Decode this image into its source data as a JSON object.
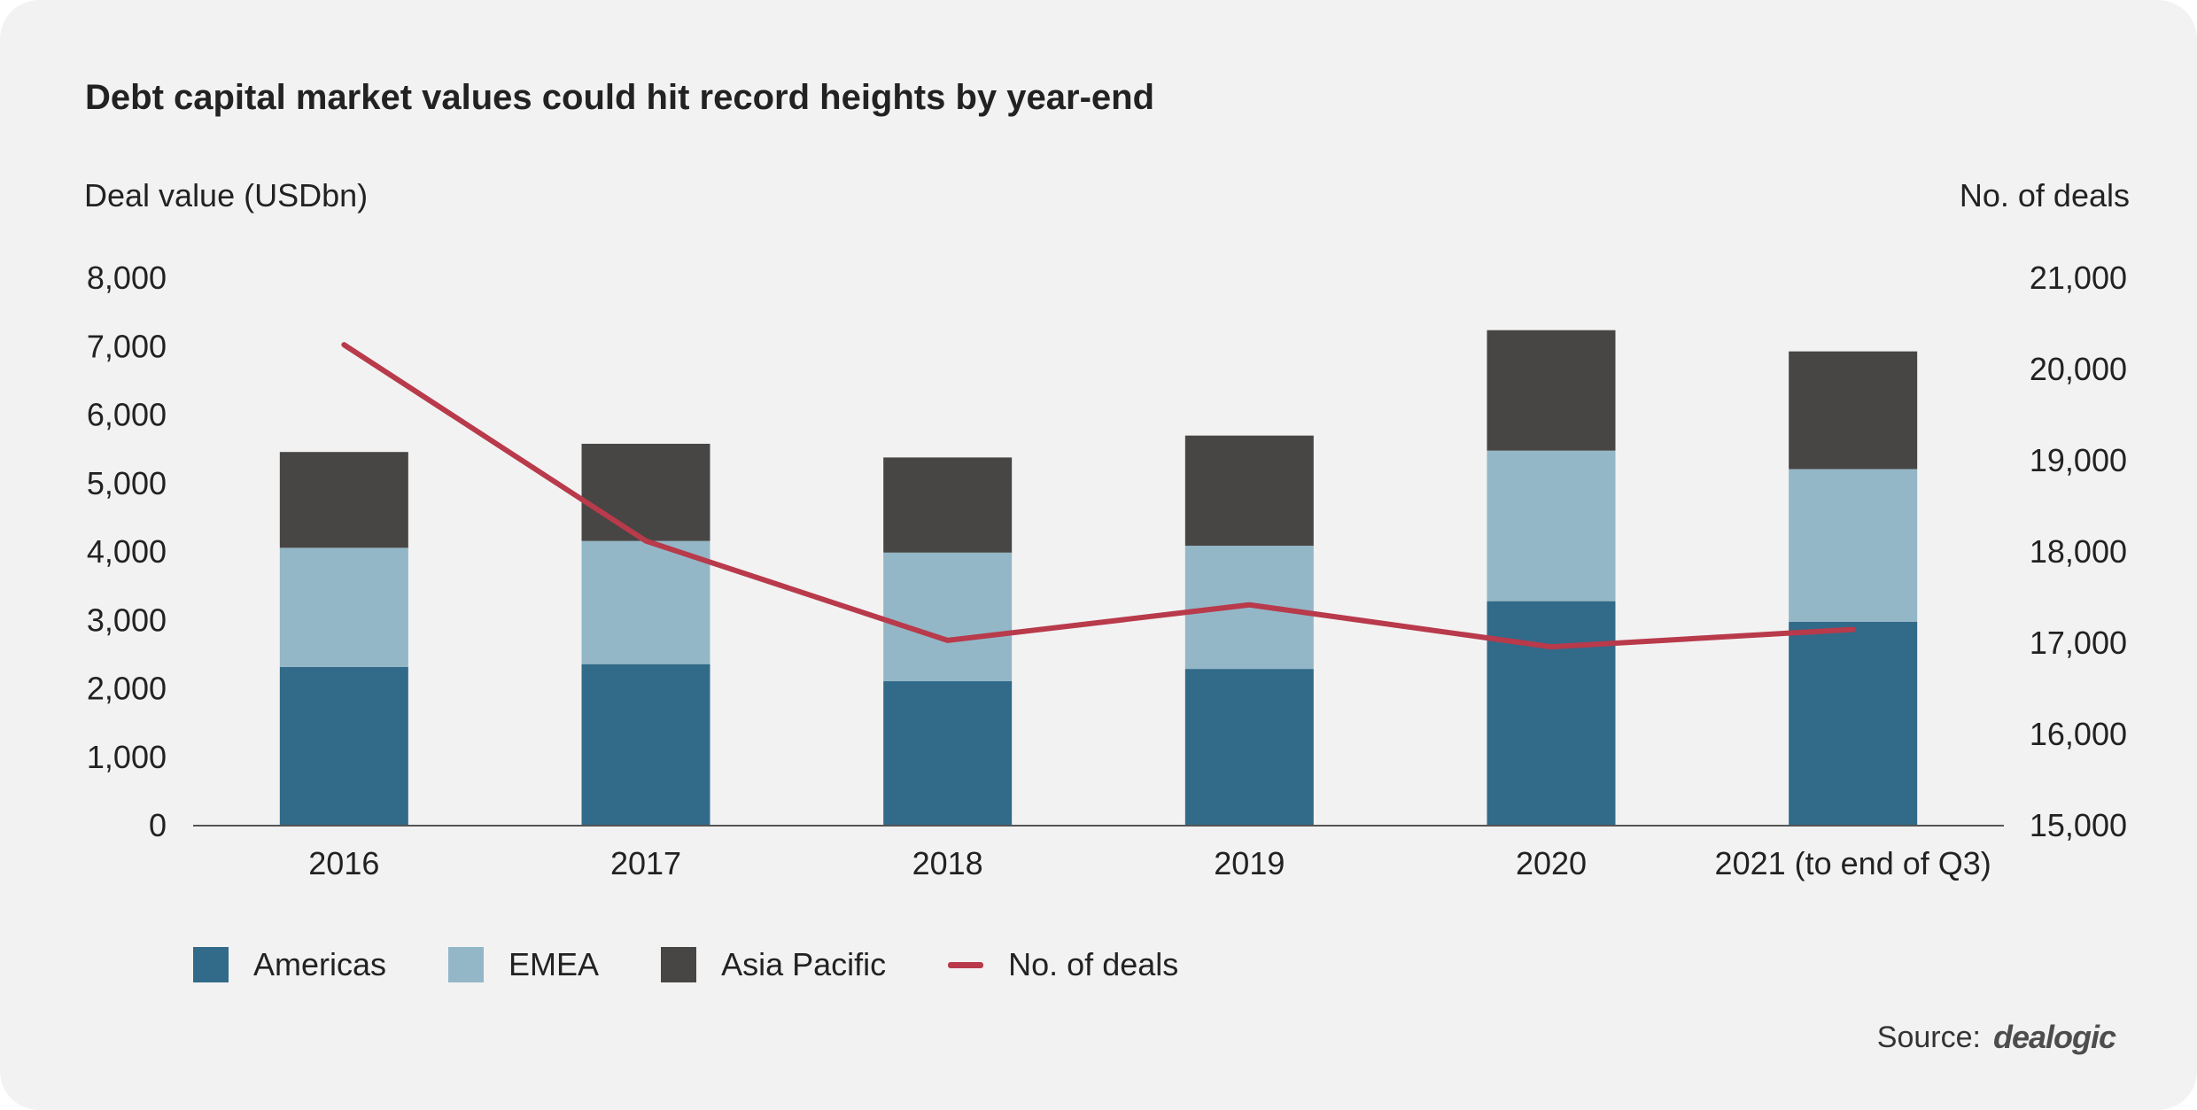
{
  "chart_data": {
    "type": "bar",
    "stacked": true,
    "title": "Debt capital market values could hit record heights by year-end",
    "ylabel": "Deal value (USDbn)",
    "y2label": "No. of deals",
    "categories": [
      "2016",
      "2017",
      "2018",
      "2019",
      "2020",
      "2021 (to end of Q3)"
    ],
    "ylim": [
      0,
      8000
    ],
    "y_ticks": [
      "0",
      "1,000",
      "2,000",
      "3,000",
      "4,000",
      "5,000",
      "6,000",
      "7,000",
      "8,000"
    ],
    "y2lim": [
      15000,
      21000
    ],
    "y2_ticks": [
      "15,000",
      "16,000",
      "17,000",
      "18,000",
      "19,000",
      "20,000",
      "21,000"
    ],
    "series": [
      {
        "name": "Americas",
        "type": "bar",
        "axis": "left",
        "color": "#326a89",
        "values": [
          2320,
          2360,
          2110,
          2290,
          3280,
          2980
        ]
      },
      {
        "name": "EMEA",
        "type": "bar",
        "axis": "left",
        "color": "#93b7c7",
        "values": [
          1740,
          1800,
          1880,
          1800,
          2200,
          2230
        ]
      },
      {
        "name": "Asia Pacific",
        "type": "bar",
        "axis": "left",
        "color": "#484644",
        "values": [
          1400,
          1420,
          1390,
          1610,
          1760,
          1720
        ]
      },
      {
        "name": "No. of deals",
        "type": "line",
        "axis": "right",
        "color": "#b83a4b",
        "values": [
          20270,
          18120,
          17030,
          17420,
          16960,
          17150
        ]
      }
    ],
    "grid": false,
    "legend": "bottom-left"
  },
  "source": {
    "label": "Source:",
    "logo": "dealogic"
  }
}
